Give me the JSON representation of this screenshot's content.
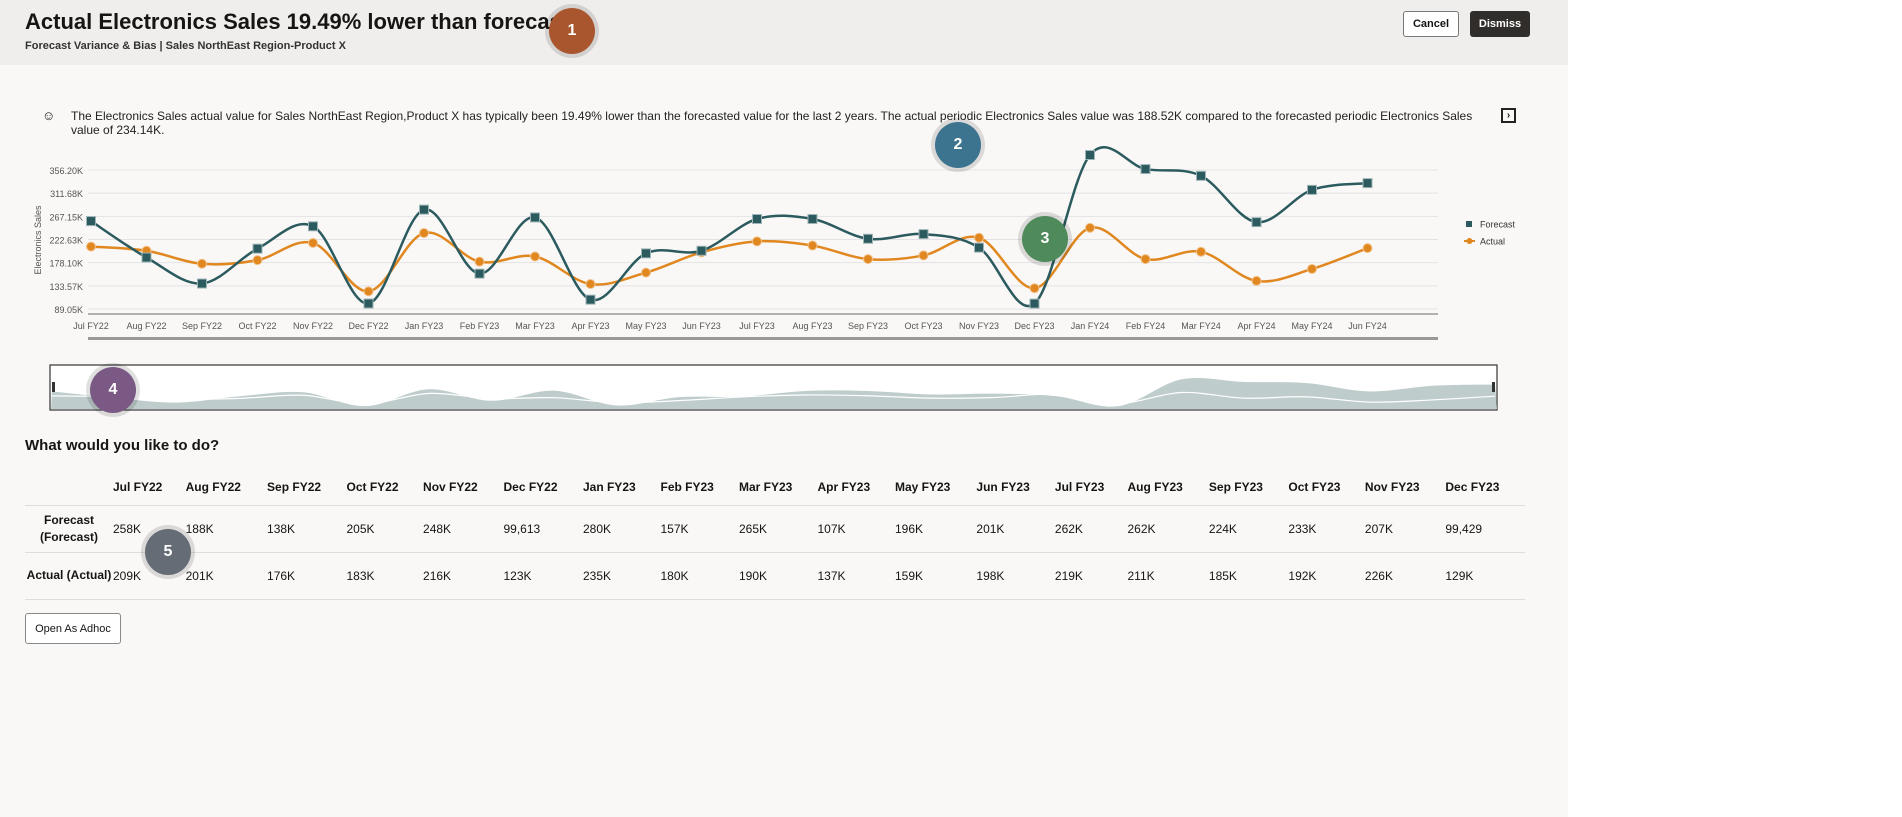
{
  "header": {
    "title": "Actual Electronics Sales 19.49% lower than forecast",
    "subtitle": "Forecast Variance & Bias | Sales NorthEast Region-Product X",
    "cancel_label": "Cancel",
    "dismiss_label": "Dismiss"
  },
  "insight": {
    "icon": "insight-bot-icon",
    "text": "The Electronics Sales actual value for Sales NorthEast Region,Product X has typically been 19.49% lower than the forecasted value for the last 2 years. The actual periodic Electronics Sales value was 188.52K compared to the forecasted periodic Electronics Sales value of 234.14K.",
    "expand_icon": "panel-expand-icon"
  },
  "chart_data": {
    "type": "line",
    "ylabel": "Electronics Sales",
    "y_ticks": [
      "89.05K",
      "133.57K",
      "178.10K",
      "222.63K",
      "267.15K",
      "311.68K",
      "356.20K"
    ],
    "ylim": [
      89050,
      356200
    ],
    "grid": true,
    "legend_position": "right",
    "categories": [
      "Jul FY22",
      "Aug FY22",
      "Sep FY22",
      "Oct FY22",
      "Nov FY22",
      "Dec FY22",
      "Jan FY23",
      "Feb FY23",
      "Mar FY23",
      "Apr FY23",
      "May FY23",
      "Jun FY23",
      "Jul FY23",
      "Aug FY23",
      "Sep FY23",
      "Oct FY23",
      "Nov FY23",
      "Dec FY23",
      "Jan FY24",
      "Feb FY24",
      "Mar FY24",
      "Apr FY24",
      "May FY24",
      "Jun FY24"
    ],
    "series": [
      {
        "name": "Forecast",
        "color": "#2b5a5f",
        "marker": "square",
        "values": [
          258000,
          188000,
          138000,
          205000,
          248000,
          99613,
          280000,
          157000,
          265000,
          107000,
          196000,
          201000,
          262000,
          262000,
          224000,
          233000,
          207000,
          99429,
          385000,
          358000,
          345000,
          256000,
          318000,
          331000
        ]
      },
      {
        "name": "Actual",
        "color": "#e0871f",
        "marker": "circle",
        "values": [
          209000,
          201000,
          176000,
          183000,
          216000,
          123000,
          235000,
          180000,
          190000,
          137000,
          159000,
          198000,
          219000,
          211000,
          185000,
          192000,
          226000,
          129000,
          245000,
          185000,
          199000,
          143000,
          166000,
          206000
        ]
      }
    ]
  },
  "section_title": "What would you like to do?",
  "table": {
    "columns": [
      "Jul FY22",
      "Aug FY22",
      "Sep FY22",
      "Oct FY22",
      "Nov FY22",
      "Dec FY22",
      "Jan FY23",
      "Feb FY23",
      "Mar FY23",
      "Apr FY23",
      "May FY23",
      "Jun FY23",
      "Jul FY23",
      "Aug FY23",
      "Sep FY23",
      "Oct FY23",
      "Nov FY23",
      "Dec FY23"
    ],
    "rows": [
      {
        "label": "Forecast (Forecast)",
        "cells": [
          "258K",
          "188K",
          "138K",
          "205K",
          "248K",
          "99,613",
          "280K",
          "157K",
          "265K",
          "107K",
          "196K",
          "201K",
          "262K",
          "262K",
          "224K",
          "233K",
          "207K",
          "99,429"
        ]
      },
      {
        "label": "Actual (Actual)",
        "cells": [
          "209K",
          "201K",
          "176K",
          "183K",
          "216K",
          "123K",
          "235K",
          "180K",
          "190K",
          "137K",
          "159K",
          "198K",
          "219K",
          "211K",
          "185K",
          "192K",
          "226K",
          "129K"
        ]
      }
    ]
  },
  "open_adhoc_label": "Open As Adhoc",
  "badges": [
    "1",
    "2",
    "3",
    "4",
    "5"
  ]
}
